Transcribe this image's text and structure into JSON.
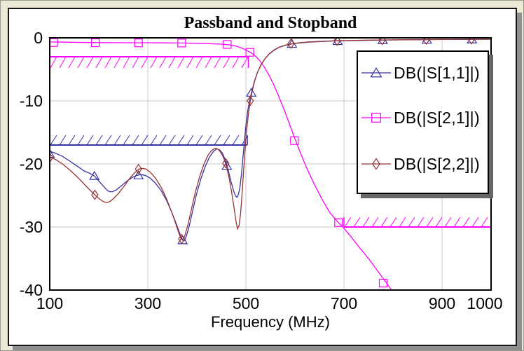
{
  "window": {
    "background_color": "#ECE9D6",
    "page_color": "#FFFFFF",
    "page_border_color": "#161616",
    "page_shadow_color": "#8F8F8F"
  },
  "chart_data": {
    "type": "line",
    "title": "Passband and Stopband",
    "xlabel": "Frequency (MHz)",
    "ylabel": "",
    "xlim": [
      100,
      1000
    ],
    "ylim": [
      -40,
      0
    ],
    "grid": true,
    "colors": {
      "grid": "#C8C8C8",
      "axis": "#000000"
    },
    "xticks": [
      {
        "value": 100,
        "label": "100"
      },
      {
        "value": 300,
        "label": "300"
      },
      {
        "value": 500,
        "label": "500"
      },
      {
        "value": 700,
        "label": "700"
      },
      {
        "value": 900,
        "label": "900"
      },
      {
        "value": 1000,
        "label": "1000",
        "dx": -9
      }
    ],
    "yticks": [
      {
        "value": 0,
        "label": "0"
      },
      {
        "value": -10,
        "label": "-10"
      },
      {
        "value": -20,
        "label": "-20"
      },
      {
        "value": -30,
        "label": "-30"
      },
      {
        "value": -40,
        "label": "-40"
      }
    ],
    "grid_x": [
      300,
      500,
      700,
      900
    ],
    "grid_y": [
      -10,
      -20,
      -30
    ],
    "legend": {
      "position": "top-right"
    },
    "series": [
      {
        "id": "s11",
        "name": "DB(|S[1,1]|)",
        "color": "#3333A6",
        "marker": "triangle",
        "points": [
          [
            100,
            -18.0
          ],
          [
            112,
            -18.3
          ],
          [
            126,
            -18.8
          ],
          [
            140,
            -19.5
          ],
          [
            155,
            -20.3
          ],
          [
            170,
            -21.1
          ],
          [
            182,
            -21.5
          ],
          [
            191,
            -21.9
          ],
          [
            200,
            -22.7
          ],
          [
            208,
            -23.4
          ],
          [
            216,
            -24.1
          ],
          [
            222,
            -24.4
          ],
          [
            228,
            -24.4
          ],
          [
            236,
            -24.1
          ],
          [
            247,
            -23.4
          ],
          [
            258,
            -22.7
          ],
          [
            269,
            -22.1
          ],
          [
            278,
            -21.8
          ],
          [
            286,
            -21.7
          ],
          [
            294,
            -21.8
          ],
          [
            304,
            -22.2
          ],
          [
            315,
            -23.0
          ],
          [
            327,
            -24.2
          ],
          [
            339,
            -25.9
          ],
          [
            350,
            -27.9
          ],
          [
            359,
            -29.7
          ],
          [
            366,
            -31.2
          ],
          [
            371,
            -32.1
          ],
          [
            374,
            -32.2
          ],
          [
            378,
            -31.6
          ],
          [
            384,
            -30.0
          ],
          [
            391,
            -27.6
          ],
          [
            399,
            -24.9
          ],
          [
            408,
            -22.4
          ],
          [
            417,
            -20.4
          ],
          [
            426,
            -18.9
          ],
          [
            434,
            -18.0
          ],
          [
            441,
            -17.6
          ],
          [
            447,
            -17.8
          ],
          [
            453,
            -18.4
          ],
          [
            459,
            -19.6
          ],
          [
            464,
            -21.0
          ],
          [
            470,
            -22.9
          ],
          [
            475,
            -24.3
          ],
          [
            479,
            -25.1
          ],
          [
            482,
            -25.3
          ],
          [
            485,
            -24.8
          ],
          [
            488,
            -23.6
          ],
          [
            491,
            -21.6
          ],
          [
            494,
            -19.0
          ],
          [
            497,
            -16.4
          ],
          [
            500,
            -13.9
          ],
          [
            504,
            -11.5
          ],
          [
            508,
            -9.8
          ],
          [
            512,
            -8.5
          ],
          [
            517,
            -7.0
          ],
          [
            523,
            -5.6
          ],
          [
            530,
            -4.4
          ],
          [
            538,
            -3.4
          ],
          [
            547,
            -2.6
          ],
          [
            557,
            -2.0
          ],
          [
            568,
            -1.5
          ],
          [
            580,
            -1.2
          ],
          [
            595,
            -0.95
          ],
          [
            610,
            -0.8
          ],
          [
            630,
            -0.68
          ],
          [
            655,
            -0.58
          ],
          [
            680,
            -0.5
          ],
          [
            710,
            -0.45
          ],
          [
            745,
            -0.4
          ],
          [
            780,
            -0.36
          ],
          [
            820,
            -0.32
          ],
          [
            860,
            -0.3
          ],
          [
            900,
            -0.27
          ],
          [
            950,
            -0.25
          ],
          [
            1000,
            -0.23
          ]
        ],
        "marker_points": [
          [
            100,
            -18.4
          ],
          [
            191,
            -21.9
          ],
          [
            281,
            -21.8
          ],
          [
            371,
            -32.1
          ],
          [
            461,
            -20.3
          ],
          [
            511,
            -8.7
          ],
          [
            594,
            -0.95
          ],
          [
            687,
            -0.5
          ],
          [
            779,
            -0.36
          ],
          [
            869,
            -0.3
          ],
          [
            961,
            -0.25
          ]
        ]
      },
      {
        "id": "s21",
        "name": "DB(|S[2,1]|)",
        "color": "#FF00FF",
        "marker": "square",
        "points": [
          [
            100,
            -0.65
          ],
          [
            140,
            -0.7
          ],
          [
            180,
            -0.74
          ],
          [
            220,
            -0.77
          ],
          [
            260,
            -0.78
          ],
          [
            300,
            -0.78
          ],
          [
            340,
            -0.8
          ],
          [
            370,
            -0.82
          ],
          [
            400,
            -0.87
          ],
          [
            425,
            -0.92
          ],
          [
            450,
            -1.0
          ],
          [
            468,
            -1.12
          ],
          [
            482,
            -1.35
          ],
          [
            494,
            -1.7
          ],
          [
            503,
            -2.05
          ],
          [
            511,
            -2.4
          ],
          [
            520,
            -2.95
          ],
          [
            529,
            -3.7
          ],
          [
            538,
            -4.7
          ],
          [
            547,
            -5.9
          ],
          [
            556,
            -7.3
          ],
          [
            566,
            -9.1
          ],
          [
            578,
            -11.4
          ],
          [
            590,
            -13.9
          ],
          [
            600,
            -16.0
          ],
          [
            612,
            -18.4
          ],
          [
            625,
            -20.8
          ],
          [
            640,
            -23.3
          ],
          [
            656,
            -25.7
          ],
          [
            672,
            -27.8
          ],
          [
            690,
            -29.4
          ],
          [
            700,
            -30.2
          ],
          [
            715,
            -31.6
          ],
          [
            732,
            -33.3
          ],
          [
            750,
            -35.0
          ],
          [
            768,
            -36.9
          ],
          [
            785,
            -38.7
          ],
          [
            800,
            -40.3
          ],
          [
            808,
            -41.0
          ]
        ],
        "marker_points": [
          [
            108,
            -0.75
          ],
          [
            193,
            -0.78
          ],
          [
            281,
            -0.8
          ],
          [
            369,
            -0.82
          ],
          [
            462,
            -1.05
          ],
          [
            508,
            -2.3
          ],
          [
            599,
            -16.3
          ],
          [
            689,
            -29.3
          ],
          [
            780,
            -38.9
          ]
        ]
      },
      {
        "id": "s22",
        "name": "DB(|S[2,2]|)",
        "color": "#993333",
        "marker": "diamond",
        "points": [
          [
            100,
            -18.9
          ],
          [
            112,
            -19.3
          ],
          [
            126,
            -20.0
          ],
          [
            140,
            -20.9
          ],
          [
            154,
            -21.9
          ],
          [
            168,
            -23.0
          ],
          [
            180,
            -24.0
          ],
          [
            192,
            -24.9
          ],
          [
            202,
            -25.6
          ],
          [
            210,
            -26.0
          ],
          [
            216,
            -26.1
          ],
          [
            222,
            -26.0
          ],
          [
            230,
            -25.5
          ],
          [
            240,
            -24.7
          ],
          [
            252,
            -23.5
          ],
          [
            263,
            -22.3
          ],
          [
            273,
            -21.4
          ],
          [
            282,
            -20.8
          ],
          [
            289,
            -20.7
          ],
          [
            296,
            -20.8
          ],
          [
            305,
            -21.3
          ],
          [
            316,
            -22.3
          ],
          [
            328,
            -23.8
          ],
          [
            339,
            -25.7
          ],
          [
            349,
            -27.7
          ],
          [
            357,
            -29.5
          ],
          [
            363,
            -30.9
          ],
          [
            368,
            -31.9
          ],
          [
            371,
            -32.0
          ],
          [
            375,
            -31.5
          ],
          [
            381,
            -29.9
          ],
          [
            388,
            -27.5
          ],
          [
            396,
            -24.8
          ],
          [
            405,
            -22.2
          ],
          [
            414,
            -20.1
          ],
          [
            423,
            -18.6
          ],
          [
            431,
            -17.8
          ],
          [
            438,
            -17.5
          ],
          [
            444,
            -17.7
          ],
          [
            450,
            -18.3
          ],
          [
            456,
            -19.3
          ],
          [
            461,
            -20.6
          ],
          [
            466,
            -22.3
          ],
          [
            471,
            -24.5
          ],
          [
            476,
            -27.0
          ],
          [
            480,
            -29.2
          ],
          [
            483,
            -30.3
          ],
          [
            486,
            -29.8
          ],
          [
            489,
            -28.0
          ],
          [
            492,
            -25.0
          ],
          [
            495,
            -21.5
          ],
          [
            498,
            -18.0
          ],
          [
            501,
            -15.0
          ],
          [
            505,
            -12.2
          ],
          [
            509,
            -10.0
          ],
          [
            513,
            -8.4
          ],
          [
            518,
            -6.8
          ],
          [
            524,
            -5.4
          ],
          [
            531,
            -4.3
          ],
          [
            539,
            -3.3
          ],
          [
            548,
            -2.5
          ],
          [
            558,
            -1.9
          ],
          [
            569,
            -1.45
          ],
          [
            581,
            -1.15
          ],
          [
            596,
            -0.9
          ],
          [
            612,
            -0.75
          ],
          [
            632,
            -0.63
          ],
          [
            657,
            -0.54
          ],
          [
            682,
            -0.47
          ],
          [
            712,
            -0.42
          ],
          [
            747,
            -0.37
          ],
          [
            782,
            -0.33
          ],
          [
            822,
            -0.3
          ],
          [
            862,
            -0.27
          ],
          [
            902,
            -0.25
          ],
          [
            952,
            -0.22
          ],
          [
            1000,
            -0.2
          ]
        ],
        "marker_points": [
          [
            100,
            -19.0
          ],
          [
            192,
            -24.9
          ],
          [
            281,
            -20.8
          ],
          [
            369,
            -31.9
          ],
          [
            459,
            -19.9
          ],
          [
            509,
            -10.0
          ],
          [
            592,
            -0.92
          ],
          [
            686,
            -0.47
          ],
          [
            778,
            -0.34
          ],
          [
            868,
            -0.28
          ],
          [
            960,
            -0.23
          ]
        ]
      }
    ],
    "limit_lines": [
      {
        "name": "passband-insertion-loss-limit",
        "value": -3,
        "from": 100,
        "to": 505,
        "color": "#FF00FF",
        "hatch": "below"
      },
      {
        "name": "passband-return-loss-limit",
        "value": -17,
        "from": 100,
        "to": 503,
        "color": "#3333A6",
        "hatch": "above"
      },
      {
        "name": "stopband-rejection-limit",
        "value": -30,
        "from": 700,
        "to": 1000,
        "color": "#FF00FF",
        "hatch": "above"
      }
    ]
  }
}
